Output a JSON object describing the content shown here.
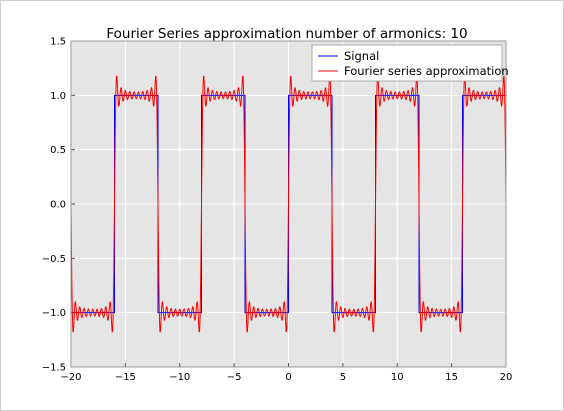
{
  "chart_data": {
    "type": "line",
    "title": "Fourier Series approximation number of armonics: 10",
    "xlim": [
      -20,
      20
    ],
    "ylim": [
      -1.5,
      1.5
    ],
    "xticks": [
      "−20",
      "−15",
      "−10",
      "−5",
      "0",
      "5",
      "10",
      "15",
      "20"
    ],
    "yticks": [
      "1.5",
      "1.0",
      "0.5",
      "0.0",
      "−0.5",
      "−1.0",
      "−1.5"
    ],
    "xtick_values": [
      -20,
      -15,
      -10,
      -5,
      0,
      5,
      10,
      15,
      20
    ],
    "ytick_values": [
      1.5,
      1.0,
      0.5,
      0.0,
      -0.5,
      -1.0,
      -1.5
    ],
    "grid": true,
    "background": "#e5e5e5",
    "legend_position": "top-right",
    "series": [
      {
        "name": "Signal",
        "color": "#0000ff",
        "kind": "square-wave",
        "amplitude": 1,
        "period": 8,
        "x": [
          -20,
          -16,
          -16,
          -12,
          -12,
          -8,
          -8,
          -4,
          -4,
          0,
          0,
          4,
          4,
          8,
          8,
          12,
          12,
          16,
          16,
          20
        ],
        "y": [
          -1,
          -1,
          1,
          1,
          -1,
          -1,
          1,
          1,
          -1,
          -1,
          1,
          1,
          -1,
          -1,
          1,
          1,
          -1,
          -1,
          1,
          1
        ]
      },
      {
        "name": "Fourier series approximation",
        "color": "#ff0000",
        "kind": "fourier-approximation",
        "harmonics": 10,
        "period": 8
      }
    ]
  }
}
